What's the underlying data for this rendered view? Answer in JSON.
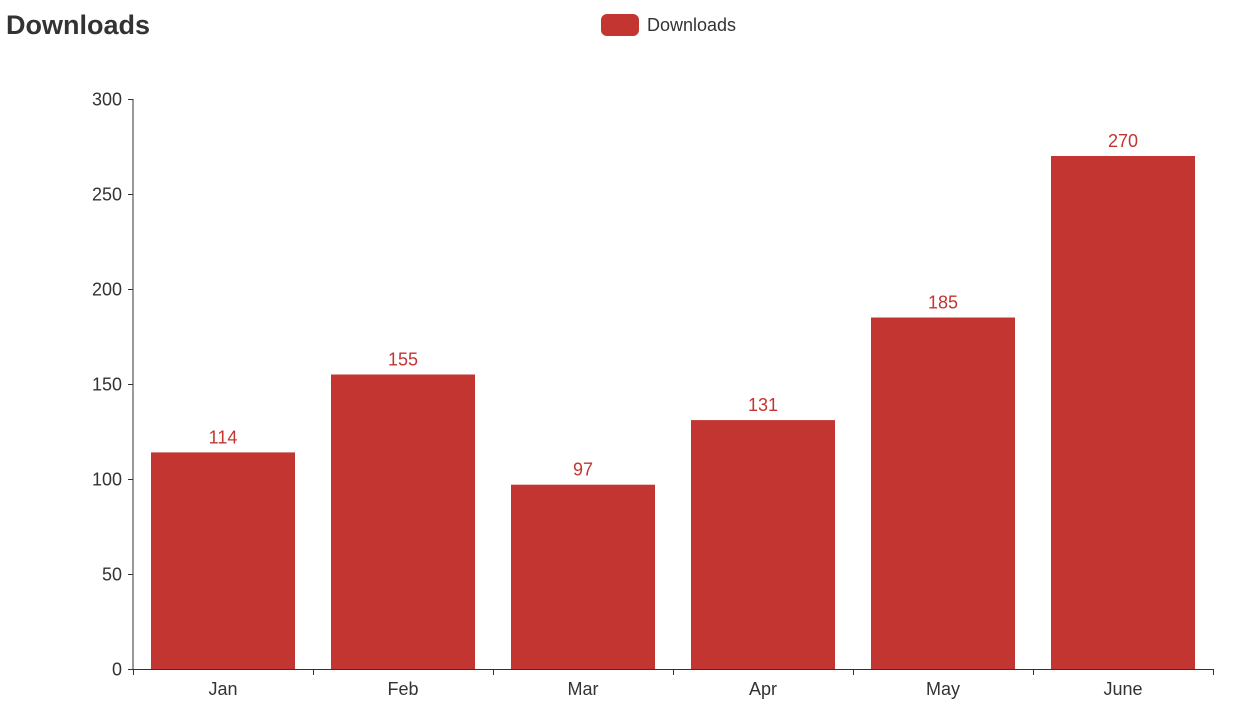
{
  "chart_data": {
    "type": "bar",
    "title": "Downloads",
    "categories": [
      "Jan",
      "Feb",
      "Mar",
      "Apr",
      "May",
      "June"
    ],
    "series": [
      {
        "name": "Downloads",
        "values": [
          114,
          155,
          97,
          131,
          185,
          270
        ]
      }
    ],
    "xlabel": "",
    "ylabel": "",
    "ylim": [
      0,
      300
    ],
    "yticks": [
      0,
      50,
      100,
      150,
      200,
      250,
      300
    ],
    "grid": false,
    "legend_position": "top-center",
    "data_labels": true,
    "colors": {
      "bar": "#c23531",
      "axis": "#333333",
      "label": "#c23531",
      "text": "#333333"
    }
  }
}
